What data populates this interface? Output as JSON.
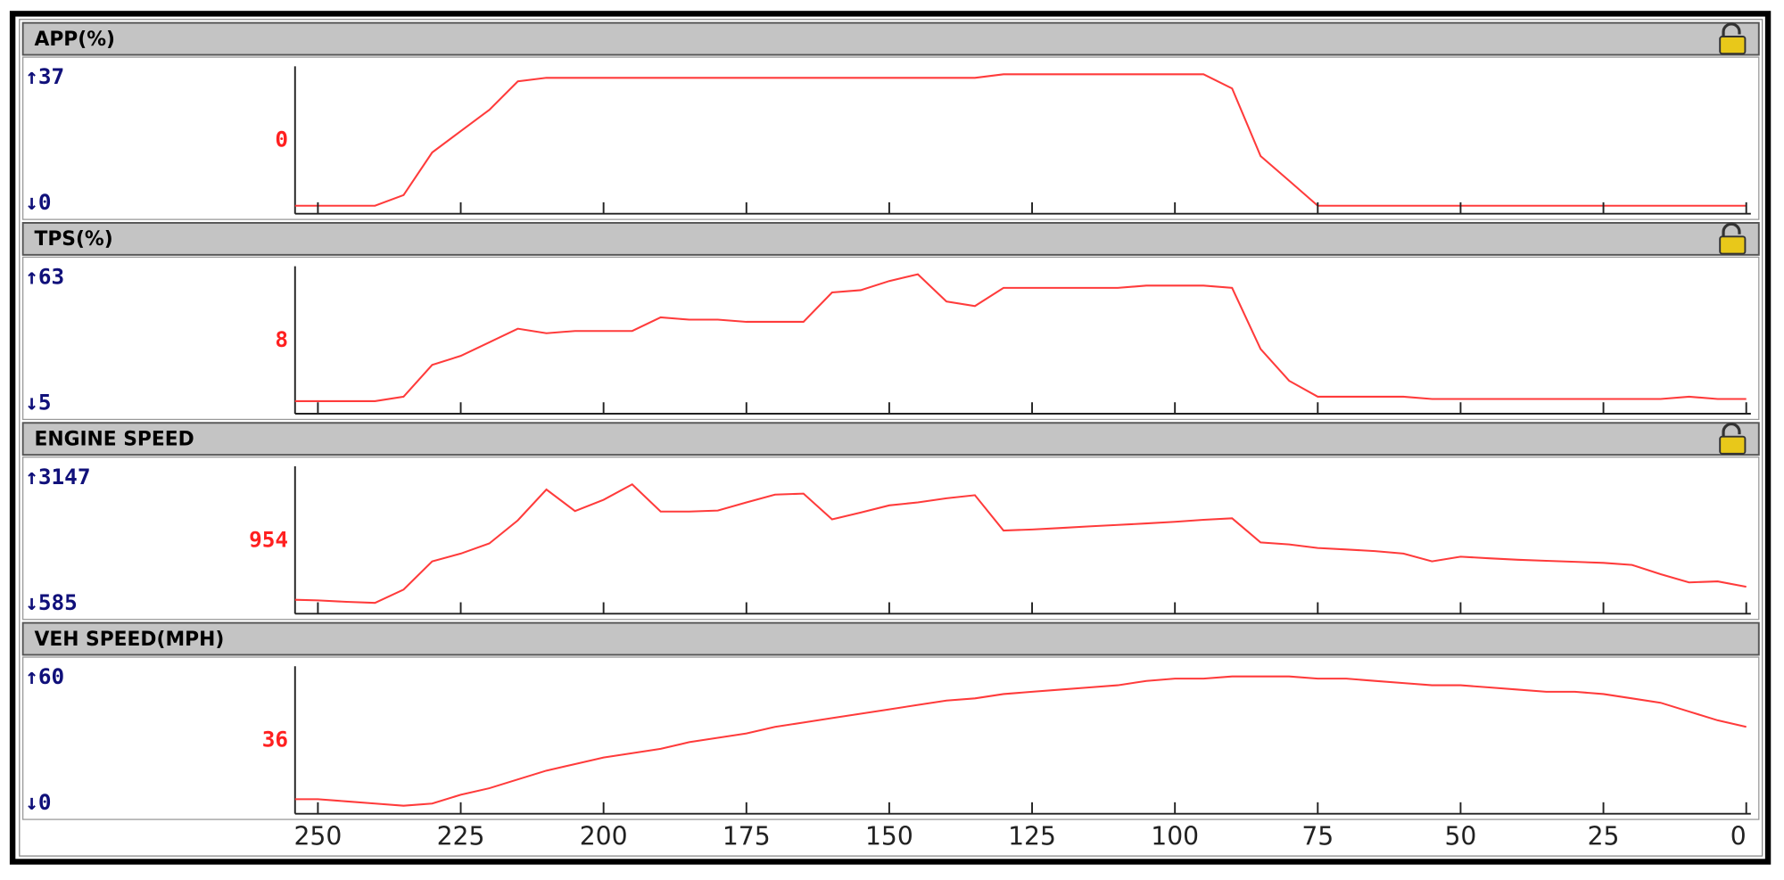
{
  "chart_data": [
    {
      "type": "line",
      "title": "APP(%)",
      "current": 0,
      "color": "#ff3b3b",
      "x": [
        254,
        250,
        245,
        240,
        235,
        230,
        225,
        220,
        215,
        210,
        205,
        200,
        195,
        190,
        185,
        180,
        175,
        170,
        165,
        160,
        155,
        150,
        145,
        140,
        135,
        130,
        125,
        120,
        115,
        110,
        105,
        100,
        95,
        90,
        85,
        80,
        75,
        70,
        65,
        60,
        55,
        50,
        45,
        40,
        35,
        30,
        25,
        20,
        15,
        10,
        5,
        0
      ],
      "values": [
        0,
        0,
        0,
        0,
        3,
        15,
        21,
        27,
        35,
        36,
        36,
        36,
        36,
        36,
        36,
        36,
        36,
        36,
        36,
        36,
        36,
        36,
        36,
        36,
        36,
        37,
        37,
        37,
        37,
        37,
        37,
        37,
        37,
        33,
        14,
        7,
        0,
        0,
        0,
        0,
        0,
        0,
        0,
        0,
        0,
        0,
        0,
        0,
        0,
        0,
        0,
        0
      ],
      "xlim": [
        254,
        0
      ],
      "ylim": [
        0,
        37
      ],
      "yticks": [
        {
          "value": 0,
          "label": "↓0"
        },
        {
          "value": 37,
          "label": "↑37"
        }
      ]
    },
    {
      "type": "line",
      "title": "TPS(%)",
      "current": 8,
      "color": "#ff3b3b",
      "x": [
        254,
        250,
        245,
        240,
        235,
        230,
        225,
        220,
        215,
        210,
        205,
        200,
        195,
        190,
        185,
        180,
        175,
        170,
        165,
        160,
        155,
        150,
        145,
        140,
        135,
        130,
        125,
        120,
        115,
        110,
        105,
        100,
        95,
        90,
        85,
        80,
        75,
        70,
        65,
        60,
        55,
        50,
        45,
        40,
        35,
        30,
        25,
        20,
        15,
        10,
        5,
        0
      ],
      "values": [
        7,
        7,
        7,
        7,
        9,
        23,
        27,
        33,
        39,
        37,
        38,
        38,
        38,
        44,
        43,
        43,
        42,
        42,
        42,
        55,
        56,
        60,
        63,
        51,
        49,
        57,
        57,
        57,
        57,
        57,
        58,
        58,
        58,
        57,
        30,
        16,
        9,
        9,
        9,
        9,
        8,
        8,
        8,
        8,
        8,
        8,
        8,
        8,
        8,
        9,
        8,
        8
      ],
      "xlim": [
        254,
        0
      ],
      "ylim": [
        5,
        63
      ],
      "yticks": [
        {
          "value": 5,
          "label": "↓5"
        },
        {
          "value": 63,
          "label": "↑63"
        }
      ]
    },
    {
      "type": "line",
      "title": "ENGINE SPEED",
      "current": 954,
      "color": "#ff3b3b",
      "x": [
        254,
        250,
        245,
        240,
        235,
        230,
        225,
        220,
        215,
        210,
        205,
        200,
        195,
        190,
        185,
        180,
        175,
        170,
        165,
        160,
        155,
        150,
        145,
        140,
        135,
        130,
        125,
        120,
        115,
        110,
        105,
        100,
        95,
        90,
        85,
        80,
        75,
        70,
        65,
        60,
        55,
        50,
        45,
        40,
        35,
        30,
        25,
        20,
        15,
        10,
        5,
        0
      ],
      "values": [
        700,
        690,
        660,
        640,
        900,
        1450,
        1600,
        1800,
        2250,
        2850,
        2430,
        2650,
        2950,
        2420,
        2420,
        2440,
        2600,
        2750,
        2770,
        2270,
        2400,
        2540,
        2600,
        2680,
        2740,
        2050,
        2070,
        2100,
        2130,
        2160,
        2190,
        2220,
        2260,
        2290,
        1820,
        1780,
        1710,
        1680,
        1650,
        1600,
        1450,
        1540,
        1510,
        1480,
        1460,
        1440,
        1420,
        1380,
        1200,
        1040,
        1060,
        954
      ],
      "xlim": [
        254,
        0
      ],
      "ylim": [
        585,
        3147
      ],
      "yticks": [
        {
          "value": 585,
          "label": "↓585"
        },
        {
          "value": 3147,
          "label": "↑3147"
        }
      ]
    },
    {
      "type": "line",
      "title": "VEH SPEED(MPH)",
      "current": 36,
      "color": "#ff3b3b",
      "x": [
        254,
        250,
        245,
        240,
        235,
        230,
        225,
        220,
        215,
        210,
        205,
        200,
        195,
        190,
        185,
        180,
        175,
        170,
        165,
        160,
        155,
        150,
        145,
        140,
        135,
        130,
        125,
        120,
        115,
        110,
        105,
        100,
        95,
        90,
        85,
        80,
        75,
        70,
        65,
        60,
        55,
        50,
        45,
        40,
        35,
        30,
        25,
        20,
        15,
        10,
        5,
        0
      ],
      "values": [
        3,
        3,
        2,
        1,
        0,
        1,
        5,
        8,
        12,
        16,
        19,
        22,
        24,
        26,
        29,
        31,
        33,
        36,
        38,
        40,
        42,
        44,
        46,
        48,
        49,
        51,
        52,
        53,
        54,
        55,
        57,
        58,
        58,
        59,
        59,
        59,
        58,
        58,
        57,
        56,
        55,
        55,
        54,
        53,
        52,
        52,
        51,
        49,
        47,
        43,
        39,
        36
      ],
      "xlim": [
        254,
        0
      ],
      "ylim": [
        0,
        60
      ],
      "yticks": [
        {
          "value": 0,
          "label": "↓0"
        },
        {
          "value": 60,
          "label": "↑60"
        }
      ],
      "xticks": [
        250,
        225,
        200,
        175,
        150,
        125,
        100,
        75,
        50,
        25,
        0
      ]
    }
  ]
}
